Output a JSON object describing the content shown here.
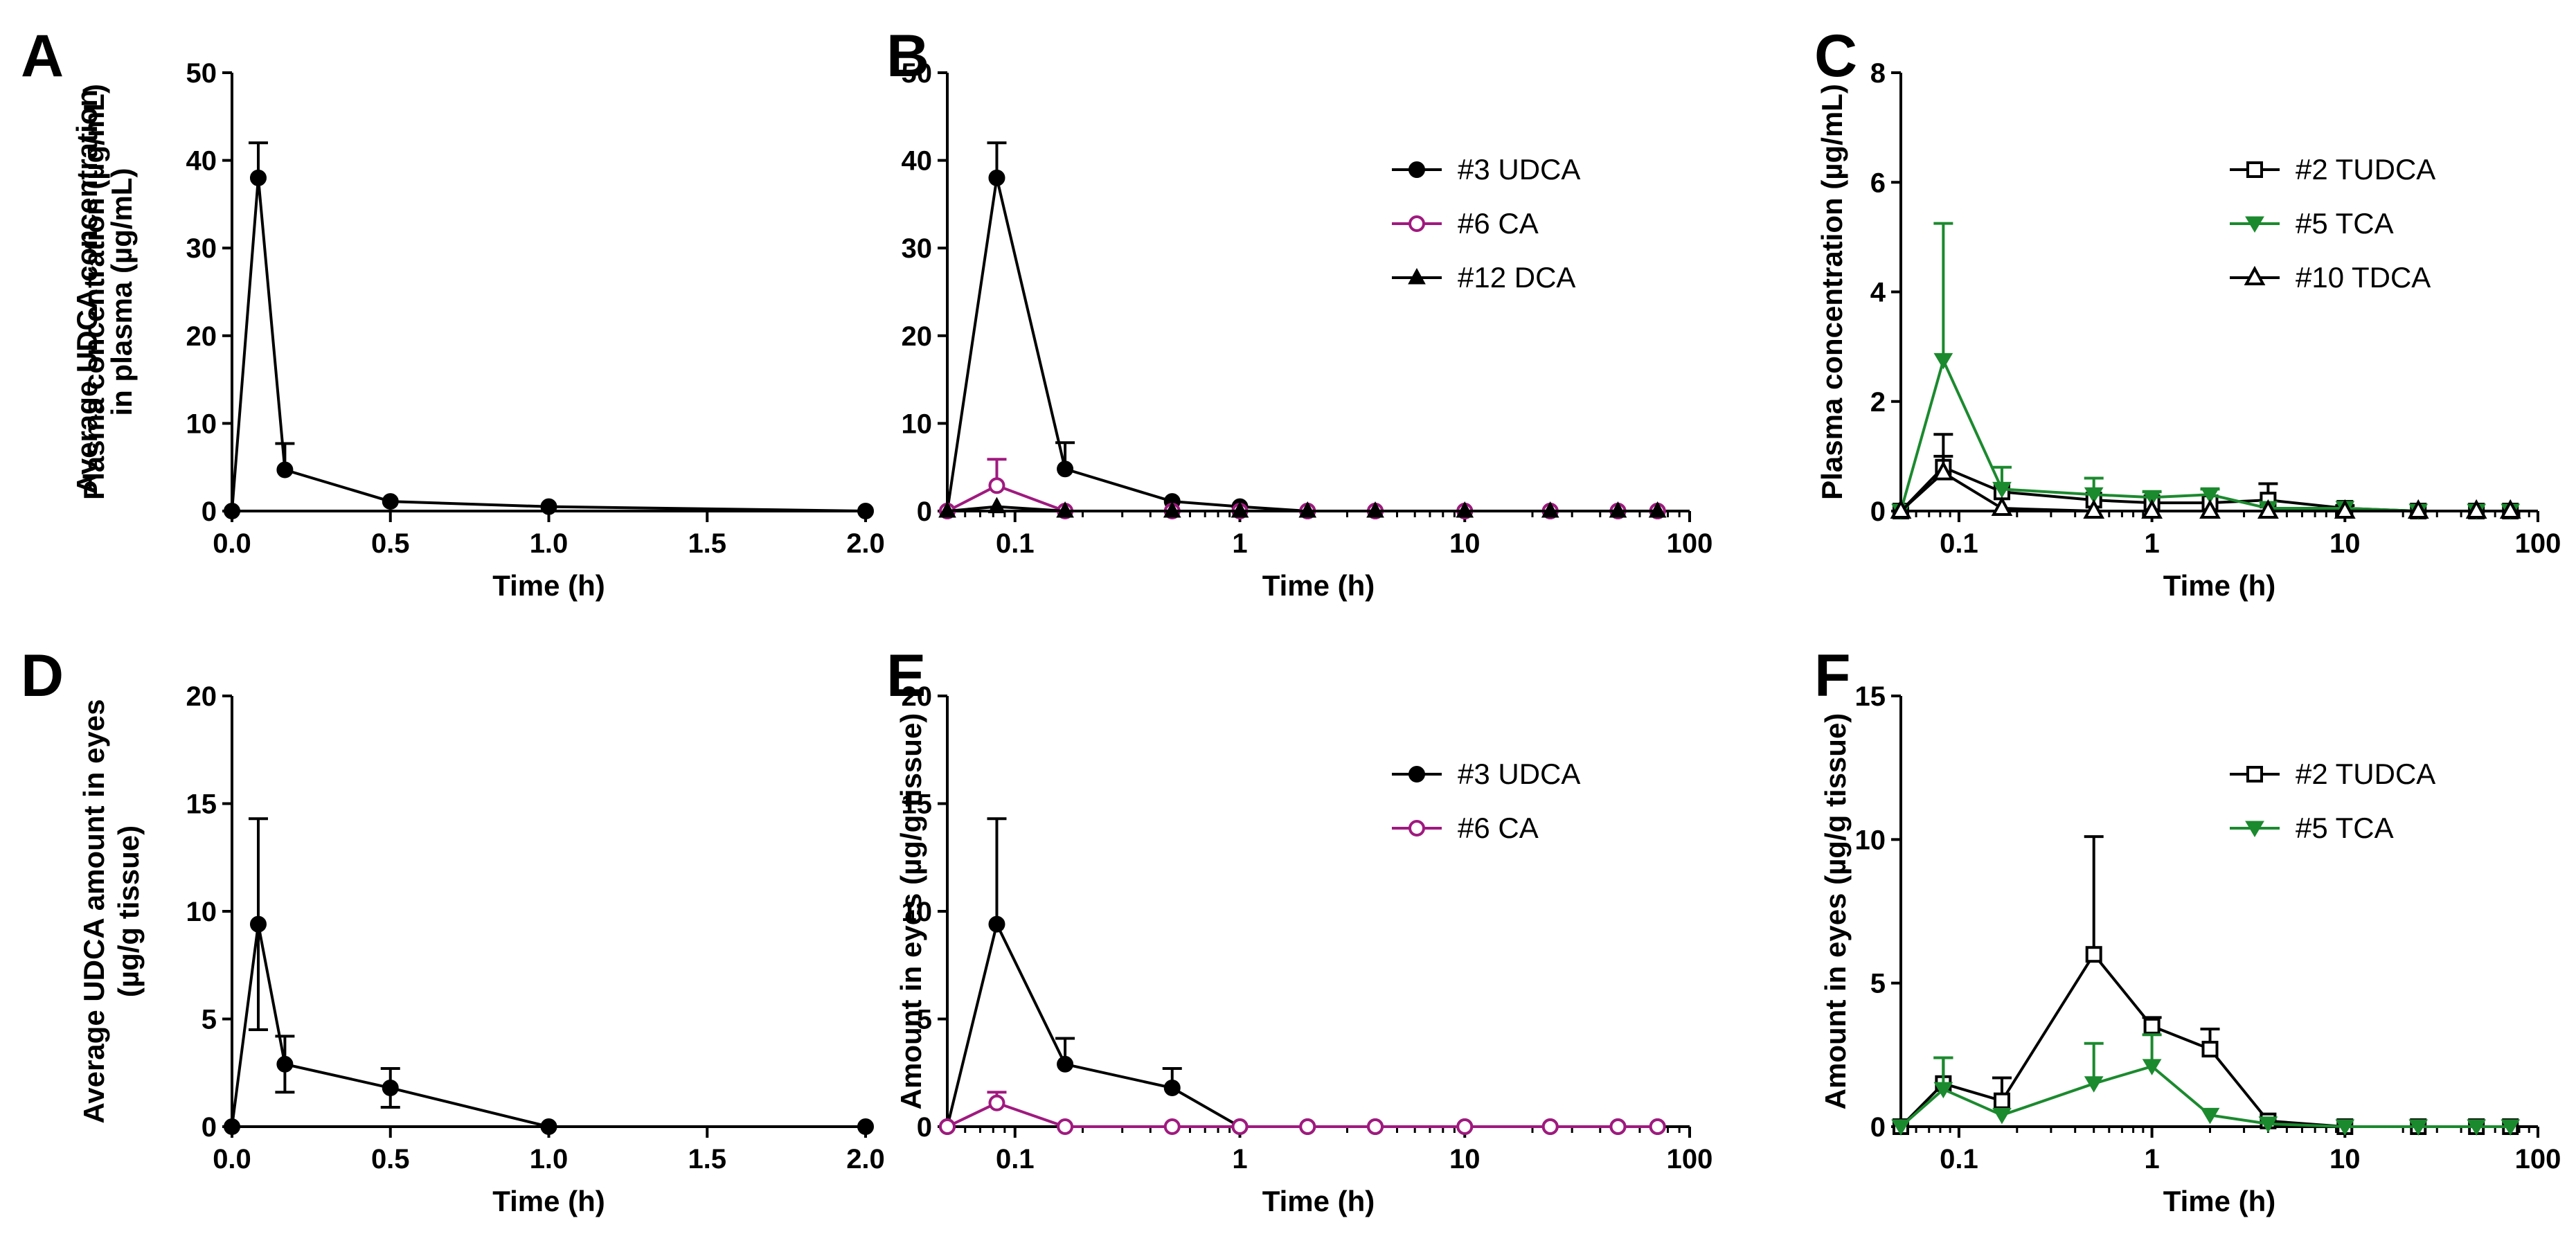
{
  "chart_data": [
    {
      "panel": "A",
      "type": "line",
      "xscale": "linear",
      "xlim": [
        0,
        2
      ],
      "ylim": [
        0,
        50
      ],
      "xticks": [
        0,
        0.5,
        1,
        1.5,
        2
      ],
      "xtick_labels": [
        "0.0",
        "0.5",
        "1.0",
        "1.5",
        "2.0"
      ],
      "yticks": [
        0,
        10,
        20,
        30,
        40,
        50
      ],
      "ytick_labels": [
        "0",
        "10",
        "20",
        "30",
        "40",
        "50"
      ],
      "xlabel": "Time (h)",
      "ylabel": [
        "Average UDCA concentration",
        "in plasma (µg/mL)"
      ],
      "legend": false,
      "series": [
        {
          "name": "UDCA",
          "color": "#000000",
          "marker": "circle-filled",
          "x": [
            0,
            0.083,
            0.167,
            0.5,
            1,
            2
          ],
          "y": [
            0,
            38,
            4.7,
            1.1,
            0.5,
            0
          ],
          "err": [
            0,
            4,
            3,
            0,
            0,
            0
          ]
        }
      ]
    },
    {
      "panel": "B",
      "type": "line",
      "xscale": "log",
      "xlim": [
        0.05,
        100
      ],
      "ylim": [
        0,
        50
      ],
      "xticks": [
        0.1,
        1,
        10,
        100
      ],
      "xtick_labels": [
        "0.1",
        "1",
        "10",
        "100"
      ],
      "yticks": [
        0,
        10,
        20,
        30,
        40,
        50
      ],
      "ytick_labels": [
        "0",
        "10",
        "20",
        "30",
        "40",
        "50"
      ],
      "xlabel": "Time (h)",
      "ylabel": [
        "Plasma concentration (µg/mL)"
      ],
      "legend": true,
      "series": [
        {
          "name": "#3 UDCA",
          "color": "#000000",
          "marker": "circle-filled",
          "x": [
            0.05,
            0.083,
            0.167,
            0.5,
            1,
            2,
            4,
            10,
            24,
            48,
            72
          ],
          "y": [
            0,
            38,
            4.8,
            1.1,
            0.5,
            0,
            0,
            0,
            0,
            0,
            0
          ],
          "err": [
            0,
            4,
            3,
            0,
            0,
            0,
            0,
            0,
            0,
            0,
            0
          ]
        },
        {
          "name": "#6 CA",
          "color": "#a0197f",
          "marker": "circle-open",
          "x": [
            0.05,
            0.083,
            0.167,
            0.5,
            1,
            2,
            4,
            10,
            24,
            48,
            72
          ],
          "y": [
            0,
            2.9,
            0,
            0,
            0,
            0,
            0,
            0,
            0,
            0,
            0
          ],
          "err": [
            0,
            3,
            0,
            0,
            0,
            0,
            0,
            0,
            0,
            0,
            0
          ]
        },
        {
          "name": "#12 DCA",
          "color": "#000000",
          "marker": "triangle-filled",
          "x": [
            0.05,
            0.083,
            0.167,
            0.5,
            1,
            2,
            4,
            10,
            24,
            48,
            72
          ],
          "y": [
            0,
            0.5,
            0,
            0,
            0,
            0,
            0,
            0,
            0,
            0,
            0
          ],
          "err": [
            0,
            0,
            0,
            0,
            0,
            0,
            0,
            0,
            0,
            0,
            0
          ]
        }
      ]
    },
    {
      "panel": "C",
      "type": "line",
      "xscale": "log",
      "xlim": [
        0.05,
        100
      ],
      "ylim": [
        0,
        8
      ],
      "xticks": [
        0.1,
        1,
        10,
        100
      ],
      "xtick_labels": [
        "0.1",
        "1",
        "10",
        "100"
      ],
      "yticks": [
        0,
        2,
        4,
        6,
        8
      ],
      "ytick_labels": [
        "0",
        "2",
        "4",
        "6",
        "8"
      ],
      "xlabel": "Time (h)",
      "ylabel": [
        "Plasma concentration (µg/mL)"
      ],
      "legend": true,
      "series": [
        {
          "name": "#2 TUDCA",
          "color": "#000000",
          "marker": "square-open",
          "x": [
            0.05,
            0.083,
            0.167,
            0.5,
            1,
            2,
            4,
            10,
            24,
            48,
            72
          ],
          "y": [
            0,
            0.8,
            0.35,
            0.2,
            0.15,
            0.15,
            0.2,
            0.05,
            0,
            0,
            0
          ],
          "err": [
            0,
            0.6,
            0,
            0,
            0,
            0,
            0.3,
            0.05,
            0,
            0,
            0
          ]
        },
        {
          "name": "#5 TCA",
          "color": "#1b8a2e",
          "marker": "triangle-down-filled",
          "x": [
            0.05,
            0.083,
            0.167,
            0.5,
            1,
            2,
            4,
            10,
            24,
            48,
            72
          ],
          "y": [
            0,
            2.75,
            0.4,
            0.3,
            0.25,
            0.3,
            0.05,
            0.05,
            0,
            0,
            0
          ],
          "err": [
            0,
            2.5,
            0.4,
            0.3,
            0.1,
            0.1,
            0,
            0,
            0,
            0,
            0
          ]
        },
        {
          "name": "#10 TDCA",
          "color": "#000000",
          "marker": "triangle-open",
          "x": [
            0.05,
            0.083,
            0.167,
            0.5,
            1,
            2,
            4,
            10,
            24,
            48,
            72
          ],
          "y": [
            0,
            0.7,
            0.05,
            0,
            0,
            0,
            0,
            0,
            0,
            0,
            0
          ],
          "err": [
            0,
            0.3,
            0,
            0,
            0,
            0,
            0,
            0,
            0,
            0,
            0
          ]
        }
      ]
    },
    {
      "panel": "D",
      "type": "line",
      "xscale": "linear",
      "xlim": [
        0,
        2
      ],
      "ylim": [
        0,
        20
      ],
      "xticks": [
        0,
        0.5,
        1,
        1.5,
        2
      ],
      "xtick_labels": [
        "0.0",
        "0.5",
        "1.0",
        "1.5",
        "2.0"
      ],
      "yticks": [
        0,
        5,
        10,
        15,
        20
      ],
      "ytick_labels": [
        "0",
        "5",
        "10",
        "15",
        "20"
      ],
      "xlabel": "Time (h)",
      "ylabel": [
        "Average UDCA amount in eyes",
        "(µg/g tissue)"
      ],
      "legend": false,
      "series": [
        {
          "name": "UDCA",
          "color": "#000000",
          "marker": "circle-filled",
          "x": [
            0,
            0.083,
            0.167,
            0.5,
            1,
            2
          ],
          "y": [
            0,
            9.4,
            2.9,
            1.8,
            0,
            0
          ],
          "err": [
            0,
            4.9,
            1.3,
            0.9,
            0,
            0
          ],
          "err_both": true
        }
      ]
    },
    {
      "panel": "E",
      "type": "line",
      "xscale": "log",
      "xlim": [
        0.05,
        100
      ],
      "ylim": [
        0,
        20
      ],
      "xticks": [
        0.1,
        1,
        10,
        100
      ],
      "xtick_labels": [
        "0.1",
        "1",
        "10",
        "100"
      ],
      "yticks": [
        0,
        5,
        10,
        15,
        20
      ],
      "ytick_labels": [
        "0",
        "5",
        "10",
        "15",
        "20"
      ],
      "xlabel": "Time (h)",
      "ylabel": [
        "Amount in eyes (µg/g tissue)"
      ],
      "legend": true,
      "series": [
        {
          "name": "#3 UDCA",
          "color": "#000000",
          "marker": "circle-filled",
          "x": [
            0.05,
            0.083,
            0.167,
            0.5,
            1,
            2,
            4,
            10,
            24,
            48,
            72
          ],
          "y": [
            0,
            9.4,
            2.9,
            1.8,
            0,
            0,
            0,
            0,
            0,
            0,
            0
          ],
          "err": [
            0,
            4.9,
            1.2,
            0.9,
            0,
            0,
            0,
            0,
            0,
            0,
            0
          ]
        },
        {
          "name": "#6 CA",
          "color": "#a0197f",
          "marker": "circle-open",
          "x": [
            0.05,
            0.083,
            0.167,
            0.5,
            1,
            2,
            4,
            10,
            24,
            48,
            72
          ],
          "y": [
            0,
            1.1,
            0,
            0,
            0,
            0,
            0,
            0,
            0,
            0,
            0
          ],
          "err": [
            0,
            0.5,
            0,
            0,
            0,
            0,
            0,
            0,
            0,
            0,
            0
          ]
        }
      ]
    },
    {
      "panel": "F",
      "type": "line",
      "xscale": "log",
      "xlim": [
        0.05,
        100
      ],
      "ylim": [
        0,
        15
      ],
      "xticks": [
        0.1,
        1,
        10,
        100
      ],
      "xtick_labels": [
        "0.1",
        "1",
        "10",
        "100"
      ],
      "yticks": [
        0,
        5,
        10,
        15
      ],
      "ytick_labels": [
        "0",
        "5",
        "10",
        "15"
      ],
      "xlabel": "Time (h)",
      "ylabel": [
        "Amount in eyes (µg/g tissue)"
      ],
      "legend": true,
      "series": [
        {
          "name": "#2 TUDCA",
          "color": "#000000",
          "marker": "square-open",
          "x": [
            0.05,
            0.083,
            0.167,
            0.5,
            1,
            2,
            4,
            10,
            24,
            48,
            72
          ],
          "y": [
            0,
            1.5,
            0.9,
            6,
            3.5,
            2.7,
            0.2,
            0,
            0,
            0,
            0
          ],
          "err": [
            0,
            0.9,
            0.8,
            4.1,
            0.3,
            0.7,
            0,
            0,
            0,
            0,
            0
          ]
        },
        {
          "name": "#5 TCA",
          "color": "#1b8a2e",
          "marker": "triangle-down-filled",
          "x": [
            0.05,
            0.083,
            0.167,
            0.5,
            1,
            2,
            4,
            10,
            24,
            48,
            72
          ],
          "y": [
            0,
            1.3,
            0.4,
            1.5,
            2.1,
            0.4,
            0.1,
            0,
            0,
            0,
            0
          ],
          "err": [
            0,
            1.1,
            0,
            1.4,
            1.1,
            0,
            0,
            0,
            0,
            0,
            0
          ]
        }
      ]
    }
  ]
}
